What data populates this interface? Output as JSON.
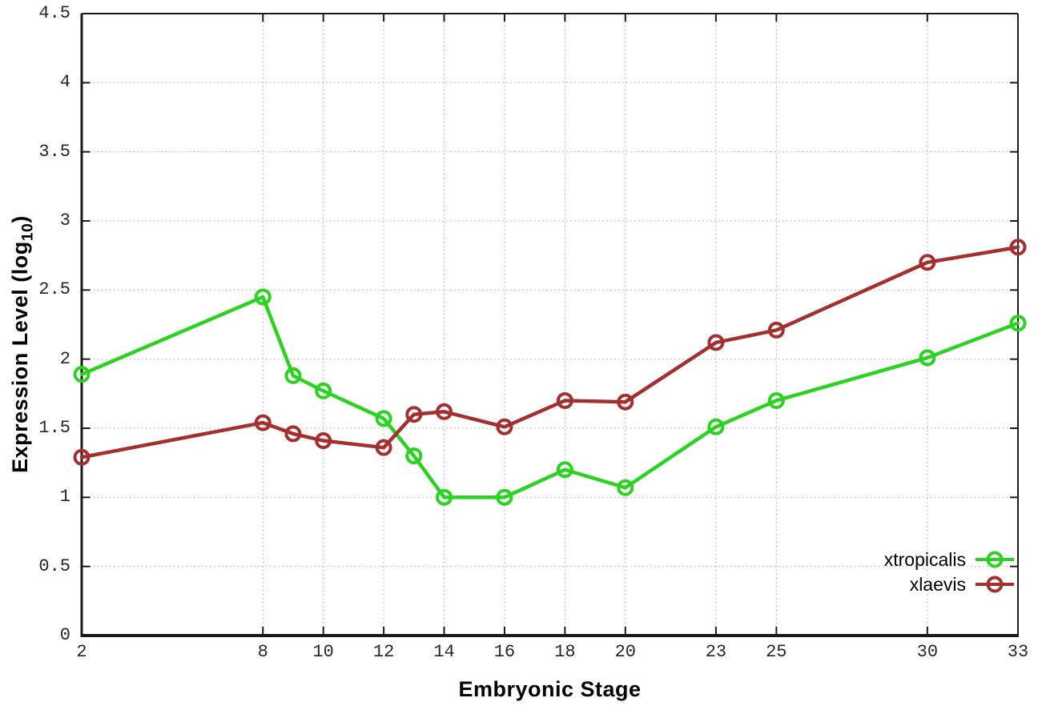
{
  "figure": {
    "background_color": "#ffffff",
    "xlabel": "Embryonic Stage",
    "ylabel": "Expression Level (log10)",
    "ylabel_prefix": "Expression Level (log",
    "ylabel_sub": "10",
    "ylabel_suffix": ")"
  },
  "chart_data": {
    "type": "line",
    "title": "",
    "x": [
      2,
      8,
      9,
      10,
      12,
      13,
      14,
      16,
      18,
      20,
      23,
      25,
      30,
      33
    ],
    "series": [
      {
        "name": "xtropicalis",
        "color": "#2bd321",
        "marker": "open-circle",
        "values": [
          1.89,
          2.45,
          1.88,
          1.77,
          1.57,
          1.3,
          1.0,
          1.0,
          1.2,
          1.07,
          1.51,
          1.7,
          2.01,
          2.26
        ]
      },
      {
        "name": "xlaevis",
        "color": "#a32f2f",
        "marker": "open-circle",
        "values": [
          1.29,
          1.54,
          1.46,
          1.41,
          1.36,
          1.6,
          1.62,
          1.51,
          1.7,
          1.69,
          2.12,
          2.21,
          2.7,
          2.81
        ]
      }
    ],
    "xlabel": "Embryonic Stage",
    "ylabel": "Expression Level (log10)",
    "xlim": [
      2,
      33
    ],
    "ylim": [
      0,
      4.5
    ],
    "xticks": [
      2,
      8,
      10,
      12,
      14,
      16,
      18,
      20,
      23,
      25,
      30,
      33
    ],
    "yticks": [
      0,
      0.5,
      1,
      1.5,
      2,
      2.5,
      3,
      3.5,
      4,
      4.5
    ],
    "grid": "dotted",
    "grid_color": "#b5b5b5",
    "axis_color": "#1a1a1a",
    "legend_position": "inside-bottom-right"
  }
}
